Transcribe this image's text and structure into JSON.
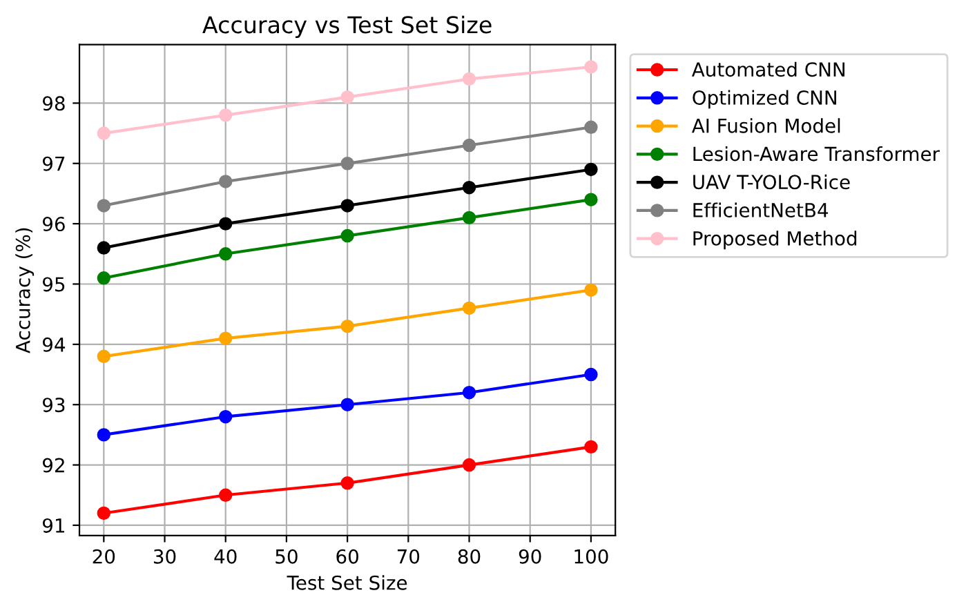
{
  "chart_data": {
    "type": "line",
    "title": "Accuracy vs Test Set Size",
    "xlabel": "Test Set Size",
    "ylabel": "Accuracy (%)",
    "x": [
      20,
      40,
      60,
      80,
      100
    ],
    "series": [
      {
        "name": "Automated CNN",
        "color": "#ff0000",
        "values": [
          91.2,
          91.5,
          91.7,
          92.0,
          92.3
        ]
      },
      {
        "name": "Optimized CNN",
        "color": "#0000ff",
        "values": [
          92.5,
          92.8,
          93.0,
          93.2,
          93.5
        ]
      },
      {
        "name": "AI Fusion Model",
        "color": "#ffa500",
        "values": [
          93.8,
          94.1,
          94.3,
          94.6,
          94.9
        ]
      },
      {
        "name": "Lesion-Aware Transformer",
        "color": "#008000",
        "values": [
          95.1,
          95.5,
          95.8,
          96.1,
          96.4
        ]
      },
      {
        "name": "UAV T-YOLO-Rice",
        "color": "#000000",
        "values": [
          95.6,
          96.0,
          96.3,
          96.6,
          96.9
        ]
      },
      {
        "name": "EfficientNetB4",
        "color": "#808080",
        "values": [
          96.3,
          96.7,
          97.0,
          97.3,
          97.6
        ]
      },
      {
        "name": "Proposed Method",
        "color": "#ffc0cb",
        "values": [
          97.5,
          97.8,
          98.1,
          98.4,
          98.6
        ]
      }
    ],
    "xlim": [
      16,
      104
    ],
    "ylim": [
      90.83,
      98.97
    ],
    "xticks": [
      20,
      30,
      40,
      50,
      60,
      70,
      80,
      90,
      100
    ],
    "yticks": [
      91,
      92,
      93,
      94,
      95,
      96,
      97,
      98
    ],
    "grid": true,
    "legend": "top right",
    "marker": "circle",
    "line_style": "solid"
  }
}
